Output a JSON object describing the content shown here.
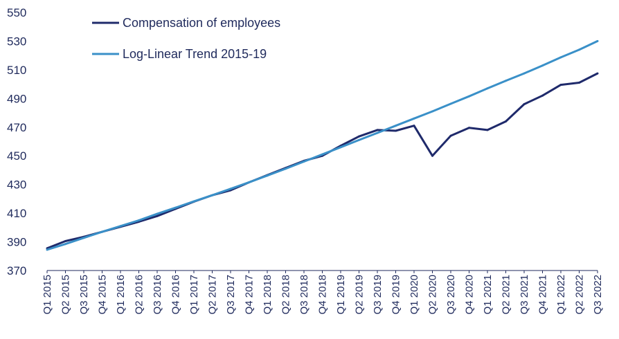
{
  "chart_data": {
    "type": "line",
    "title": "",
    "xlabel": "",
    "ylabel": "",
    "ylim": [
      370,
      550
    ],
    "yticks": [
      370,
      390,
      410,
      430,
      450,
      470,
      490,
      510,
      530,
      550
    ],
    "grid": false,
    "legend_position": "top-left",
    "categories": [
      "Q1 2015",
      "Q2 2015",
      "Q3 2015",
      "Q4 2015",
      "Q1 2016",
      "Q2 2016",
      "Q3 2016",
      "Q4 2016",
      "Q1 2017",
      "Q2 2017",
      "Q3 2017",
      "Q4 2017",
      "Q1 2018",
      "Q2 2018",
      "Q3 2018",
      "Q4 2018",
      "Q1 2019",
      "Q2 2019",
      "Q3 2019",
      "Q4 2019",
      "Q1 2020",
      "Q2 2020",
      "Q3 2020",
      "Q4 2020",
      "Q1 2021",
      "Q2 2021",
      "Q3 2021",
      "Q4 2021",
      "Q1 2022",
      "Q2 2022",
      "Q3 2022"
    ],
    "series": [
      {
        "name": "Compensation of employees",
        "color": "#1f2a6b",
        "values": [
          385.5,
          390.5,
          393.5,
          397.0,
          400.5,
          404.0,
          408.0,
          413.0,
          418.0,
          422.5,
          426.0,
          431.5,
          436.5,
          441.5,
          446.5,
          450.0,
          457.0,
          463.5,
          468.0,
          467.5,
          471.0,
          450.0,
          464.0,
          469.5,
          468.0,
          474.0,
          486.0,
          492.0,
          499.5,
          501.0,
          507.5
        ]
      },
      {
        "name": "Log-Linear Trend 2015-19",
        "color": "#3a90c8",
        "values": [
          384.5,
          388.5,
          392.8,
          397.0,
          401.0,
          405.0,
          409.5,
          413.8,
          418.2,
          422.5,
          427.0,
          431.5,
          436.2,
          441.0,
          446.0,
          451.0,
          456.0,
          461.0,
          466.0,
          471.0,
          476.0,
          481.0,
          486.3,
          491.5,
          497.0,
          502.3,
          507.5,
          513.0,
          518.7,
          524.0,
          530.0
        ]
      }
    ]
  }
}
